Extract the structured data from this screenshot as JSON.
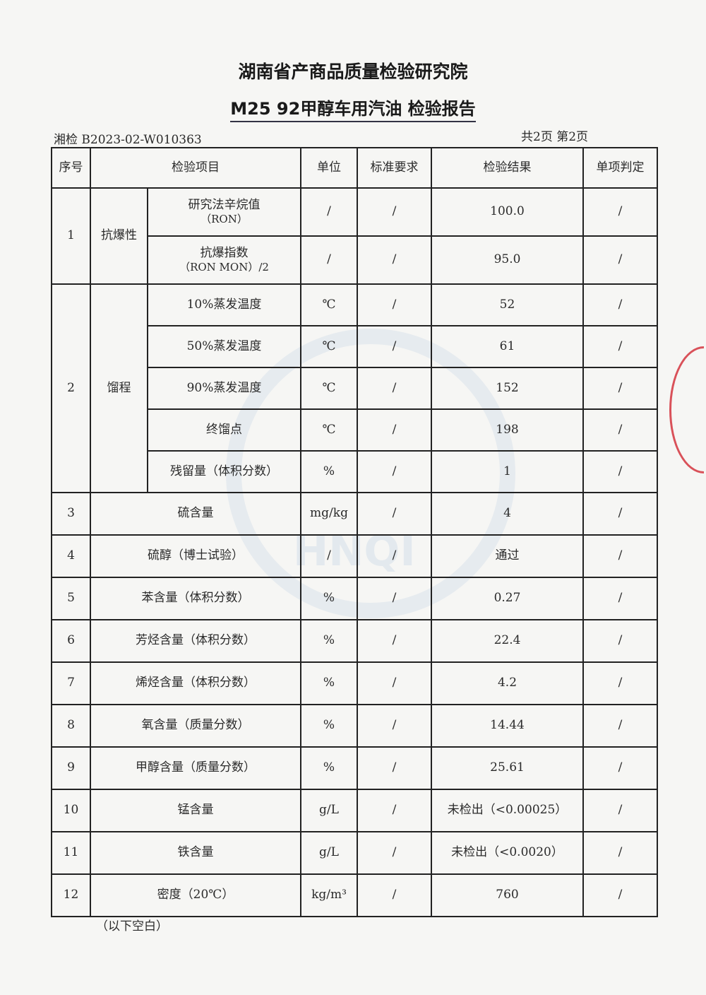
{
  "header": {
    "institute": "湖南省产商品质量检验研究院",
    "report_title": "M25 92甲醇车用汽油 检验报告",
    "doc_no": "湘检 B2023-02-W010363",
    "pages": "共2页  第2页"
  },
  "columns": [
    "序号",
    "检验项目",
    "单位",
    "标准要求",
    "检验结果",
    "单项判定"
  ],
  "group1": {
    "no": "1",
    "name": "抗爆性",
    "rows": [
      {
        "item": "研究法辛烷值",
        "sub": "（RON）",
        "unit": "/",
        "req": "/",
        "result": "100.0",
        "judge": "/"
      },
      {
        "item": "抗爆指数",
        "sub": "（RON MON）/2",
        "unit": "/",
        "req": "/",
        "result": "95.0",
        "judge": "/"
      }
    ]
  },
  "group2": {
    "no": "2",
    "name": "馏程",
    "rows": [
      {
        "item": "10%蒸发温度",
        "unit": "℃",
        "req": "/",
        "result": "52",
        "judge": "/"
      },
      {
        "item": "50%蒸发温度",
        "unit": "℃",
        "req": "/",
        "result": "61",
        "judge": "/"
      },
      {
        "item": "90%蒸发温度",
        "unit": "℃",
        "req": "/",
        "result": "152",
        "judge": "/"
      },
      {
        "item": "终馏点",
        "unit": "℃",
        "req": "/",
        "result": "198",
        "judge": "/"
      },
      {
        "item": "残留量（体积分数）",
        "unit": "%",
        "req": "/",
        "result": "1",
        "judge": "/"
      }
    ]
  },
  "rows": [
    {
      "no": "3",
      "item": "硫含量",
      "unit": "mg/kg",
      "req": "/",
      "result": "4",
      "judge": "/"
    },
    {
      "no": "4",
      "item": "硫醇（博士试验）",
      "unit": "/",
      "req": "/",
      "result": "通过",
      "judge": "/"
    },
    {
      "no": "5",
      "item": "苯含量（体积分数）",
      "unit": "%",
      "req": "/",
      "result": "0.27",
      "judge": "/"
    },
    {
      "no": "6",
      "item": "芳烃含量（体积分数）",
      "unit": "%",
      "req": "/",
      "result": "22.4",
      "judge": "/"
    },
    {
      "no": "7",
      "item": "烯烃含量（体积分数）",
      "unit": "%",
      "req": "/",
      "result": "4.2",
      "judge": "/"
    },
    {
      "no": "8",
      "item": "氧含量（质量分数）",
      "unit": "%",
      "req": "/",
      "result": "14.44",
      "judge": "/"
    },
    {
      "no": "9",
      "item": "甲醇含量（质量分数）",
      "unit": "%",
      "req": "/",
      "result": "25.61",
      "judge": "/"
    },
    {
      "no": "10",
      "item": "锰含量",
      "unit": "g/L",
      "req": "/",
      "result": "未检出（<0.00025）",
      "judge": "/"
    },
    {
      "no": "11",
      "item": "铁含量",
      "unit": "g/L",
      "req": "/",
      "result": "未检出（<0.0020）",
      "judge": "/"
    },
    {
      "no": "12",
      "item": "密度（20℃）",
      "unit": "kg/m³",
      "req": "/",
      "result": "760",
      "judge": "/"
    }
  ],
  "footer": {
    "note": "（以下空白）"
  },
  "watermark": {
    "text": "HNQI"
  }
}
